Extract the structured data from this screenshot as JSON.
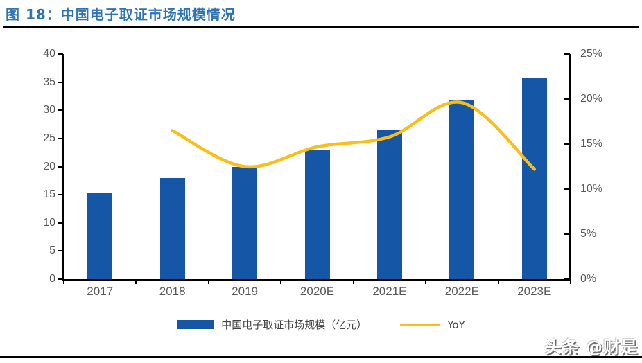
{
  "page": {
    "title": "图 18：中国电子取证市场规模情况",
    "watermark": "头条 @财是"
  },
  "colors": {
    "title_blue": "#2E74B5",
    "bar_blue": "#1556A6",
    "line_yellow": "#FBBE17",
    "axis_black": "#000000",
    "tick_text_gray": "#595959"
  },
  "chart_data": {
    "type": "bar+line",
    "title": "中国电子取证市场规模情况",
    "categories": [
      "2017",
      "2018",
      "2019",
      "2020E",
      "2021E",
      "2022E",
      "2023E"
    ],
    "series": [
      {
        "name": "中国电子取证市场规模（亿元）",
        "kind": "bar",
        "axis": "left",
        "color": "#1556A6",
        "values": [
          15.4,
          18.0,
          19.9,
          23.0,
          26.6,
          31.8,
          35.7
        ]
      },
      {
        "name": "YoY",
        "kind": "line",
        "axis": "right",
        "color": "#FBBE17",
        "values": [
          null,
          16.5,
          12.5,
          14.7,
          15.8,
          19.6,
          12.2
        ]
      }
    ],
    "left_axis": {
      "min": 0,
      "max": 40,
      "ticks": [
        0,
        5,
        10,
        15,
        20,
        25,
        30,
        35,
        40
      ],
      "tick_labels": [
        "0",
        "5",
        "10",
        "15",
        "20",
        "25",
        "30",
        "35",
        "40"
      ]
    },
    "right_axis": {
      "min": 0,
      "max": 25,
      "ticks": [
        0,
        5,
        10,
        15,
        20,
        25
      ],
      "tick_labels": [
        "0%",
        "5%",
        "10%",
        "15%",
        "20%",
        "25%"
      ],
      "unit": "%"
    },
    "grid": false,
    "legend_position": "bottom"
  }
}
